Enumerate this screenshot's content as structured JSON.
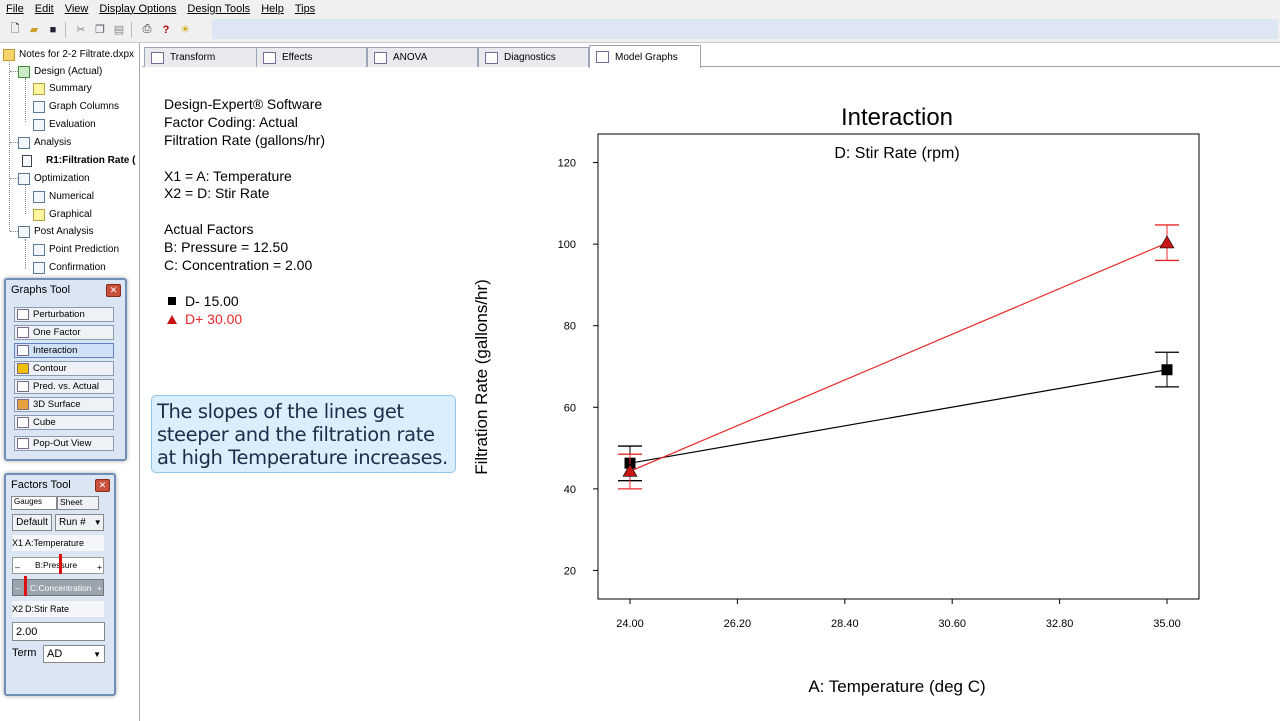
{
  "menu": [
    "File",
    "Edit",
    "View",
    "Display Options",
    "Design Tools",
    "Help",
    "Tips"
  ],
  "toolbar_icons": [
    "new-icon",
    "open-icon",
    "save-icon",
    "cut-icon",
    "copy-icon",
    "paste-icon",
    "print-icon",
    "help-icon",
    "tip-icon"
  ],
  "tree": {
    "root": "Notes for 2-2 Filtrate.dxpx",
    "design": "Design (Actual)",
    "summary": "Summary",
    "graph_columns": "Graph Columns",
    "evaluation": "Evaluation",
    "analysis": "Analysis",
    "r1": "R1:Filtration Rate (",
    "optimization": "Optimization",
    "numerical": "Numerical",
    "graphical": "Graphical",
    "post_analysis": "Post Analysis",
    "point_prediction": "Point Prediction",
    "confirmation": "Confirmation"
  },
  "graphs_tool": {
    "title": "Graphs Tool",
    "buttons": [
      "Perturbation",
      "One Factor",
      "Interaction",
      "Contour",
      "Pred. vs. Actual",
      "3D Surface",
      "Cube"
    ],
    "popout": "Pop-Out View"
  },
  "factors_tool": {
    "title": "Factors Tool",
    "tab_gauges": "Gauges",
    "tab_sheet": "Sheet",
    "default_btn": "Default",
    "run_select": "Run #",
    "x1_tag": "X1",
    "x1_name": "A:Temperature",
    "pressure": "B:Pressure",
    "concentration": "C:Concentration",
    "x2_tag": "X2",
    "x2_name": "D:Stir Rate",
    "value": "2.00",
    "term_label": "Term",
    "term_value": "AD",
    "minus": "–",
    "plus": "+"
  },
  "tabs": [
    "Transform",
    "Effects",
    "ANOVA",
    "Diagnostics",
    "Model Graphs"
  ],
  "info": {
    "line1": "Design-Expert® Software",
    "line2": "Factor Coding: Actual",
    "line3": "Filtration Rate (gallons/hr)",
    "x1": "X1 = A: Temperature",
    "x2": "X2 = D: Stir Rate",
    "actual_factors": "Actual Factors",
    "pressure": "B: Pressure = 12.50",
    "concentration": "C: Concentration = 2.00",
    "legend_low": "D- 15.00",
    "legend_high": "D+ 30.00"
  },
  "callout": {
    "line1": "The slopes of the lines get",
    "line2": "steeper and the filtration rate",
    "line3": "at high Temperature increases."
  },
  "colors": {
    "low_series": "#000000",
    "high_series": "#e8282a",
    "callout_bg": "#daeefc"
  },
  "chart_data": {
    "type": "line",
    "title": "Interaction",
    "subtitle": "D: Stir Rate (rpm)",
    "xlabel": "A: Temperature (deg C)",
    "ylabel": "Filtration Rate (gallons/hr)",
    "xlim": [
      24.0,
      35.0
    ],
    "ylim": [
      13,
      127
    ],
    "xticks": [
      "24.00",
      "26.20",
      "28.40",
      "30.60",
      "32.80",
      "35.00"
    ],
    "yticks": [
      20,
      40,
      60,
      80,
      100,
      120
    ],
    "series": [
      {
        "name": "D- 15.00",
        "x": [
          24.0,
          35.0
        ],
        "y": [
          46.3,
          69.2
        ],
        "lsd_low": [
          42.0,
          65.0
        ],
        "lsd_high": [
          50.5,
          73.5
        ],
        "marker": "square"
      },
      {
        "name": "D+ 30.00",
        "x": [
          24.0,
          35.0
        ],
        "y": [
          44.3,
          100.3
        ],
        "lsd_low": [
          40.0,
          96.0
        ],
        "lsd_high": [
          48.5,
          104.7
        ],
        "marker": "triangle"
      }
    ],
    "grid": false,
    "legend": "left"
  }
}
